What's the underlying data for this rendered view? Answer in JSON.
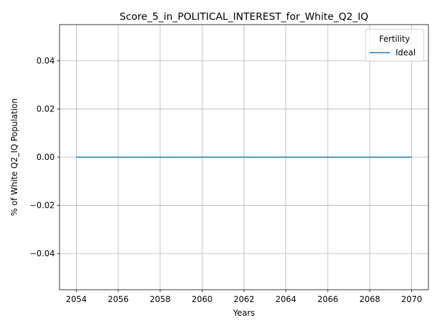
{
  "chart_data": {
    "type": "line",
    "title": "Score_5_in_POLITICAL_INTEREST_for_White_Q2_IQ",
    "xlabel": "Years",
    "ylabel": "% of White Q2_IQ Population",
    "x": [
      2054,
      2055,
      2056,
      2057,
      2058,
      2059,
      2060,
      2061,
      2062,
      2063,
      2064,
      2065,
      2066,
      2067,
      2068,
      2069,
      2070
    ],
    "series": [
      {
        "name": "Ideal",
        "color": "#1f77b4",
        "values": [
          0,
          0,
          0,
          0,
          0,
          0,
          0,
          0,
          0,
          0,
          0,
          0,
          0,
          0,
          0,
          0,
          0
        ]
      }
    ],
    "xlim": [
      2053.2,
      2070.8
    ],
    "ylim": [
      -0.055,
      0.055
    ],
    "xticks": [
      2054,
      2056,
      2058,
      2060,
      2062,
      2064,
      2066,
      2068,
      2070
    ],
    "yticks": [
      -0.04,
      -0.02,
      0.0,
      0.02,
      0.04
    ],
    "ytick_labels": [
      "−0.04",
      "−0.02",
      "0.00",
      "0.02",
      "0.04"
    ],
    "grid": true,
    "legend": {
      "title": "Fertility",
      "placement": "top-right"
    }
  }
}
